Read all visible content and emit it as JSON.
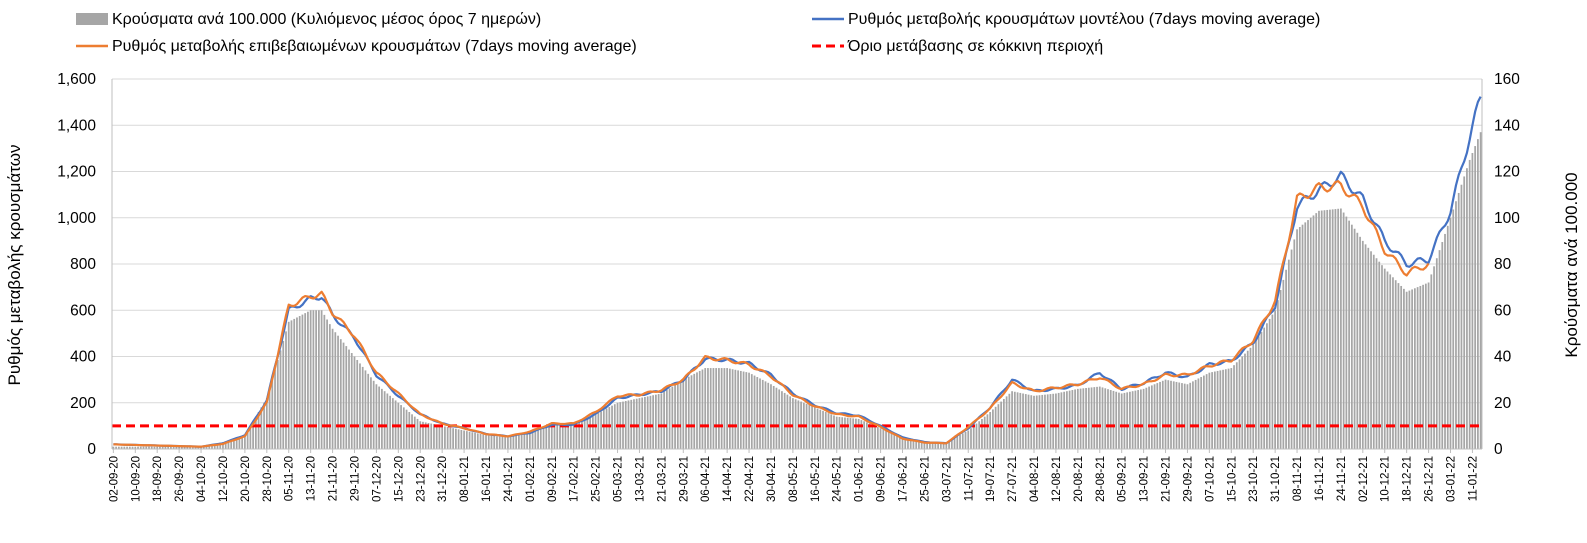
{
  "chart_data": {
    "type": "bar+line",
    "title": "",
    "ylabel_left": "Ρυθμός μεταβολής κρουσμάτων",
    "ylabel_right": "Κρούσματα ανά 100.000",
    "ylim_left": [
      0,
      1600
    ],
    "ylim_right": [
      0,
      160
    ],
    "yticks_left": [
      "0",
      "200",
      "400",
      "600",
      "800",
      "1,000",
      "1,200",
      "1,400",
      "1,600"
    ],
    "yticks_right": [
      "0",
      "20",
      "40",
      "60",
      "80",
      "100",
      "120",
      "140",
      "160"
    ],
    "grid": "horizontal",
    "legend_position": "top",
    "x_start": "2020-09-02",
    "x_end": "2022-01-14",
    "x_tick_labels": [
      "02-09-20",
      "10-09-20",
      "18-09-20",
      "26-09-20",
      "04-10-20",
      "12-10-20",
      "20-10-20",
      "28-10-20",
      "05-11-20",
      "13-11-20",
      "21-11-20",
      "29-11-20",
      "07-12-20",
      "15-12-20",
      "23-12-20",
      "31-12-20",
      "08-01-21",
      "16-01-21",
      "24-01-21",
      "01-02-21",
      "09-02-21",
      "17-02-21",
      "25-02-21",
      "05-03-21",
      "13-03-21",
      "21-03-21",
      "29-03-21",
      "06-04-21",
      "14-04-21",
      "22-04-21",
      "30-04-21",
      "08-05-21",
      "16-05-21",
      "24-05-21",
      "01-06-21",
      "09-06-21",
      "17-06-21",
      "25-06-21",
      "03-07-21",
      "11-07-21",
      "19-07-21",
      "27-07-21",
      "04-08-21",
      "12-08-21",
      "20-08-21",
      "28-08-21",
      "05-09-21",
      "13-09-21",
      "21-09-21",
      "29-09-21",
      "07-10-21",
      "15-10-21",
      "23-10-21",
      "31-10-21",
      "08-11-21",
      "16-11-21",
      "24-11-21",
      "02-12-21",
      "10-12-21",
      "18-12-21",
      "26-12-21",
      "03-01-22",
      "11-01-22"
    ],
    "series": [
      {
        "name": "Κρούσματα ανά 100.000 (Κυλιόμενος μέσος όρος 7 ημερών)",
        "type": "bar",
        "axis": "right",
        "color": "#a6a6a6",
        "points": [
          [
            "2020-09-02",
            1
          ],
          [
            "2020-09-18",
            1
          ],
          [
            "2020-10-04",
            1
          ],
          [
            "2020-10-12",
            3
          ],
          [
            "2020-10-20",
            6
          ],
          [
            "2020-10-28",
            22
          ],
          [
            "2020-11-05",
            55
          ],
          [
            "2020-11-13",
            60
          ],
          [
            "2020-11-17",
            60
          ],
          [
            "2020-11-21",
            52
          ],
          [
            "2020-11-29",
            40
          ],
          [
            "2020-12-07",
            28
          ],
          [
            "2020-12-15",
            20
          ],
          [
            "2020-12-23",
            12
          ],
          [
            "2020-12-31",
            10
          ],
          [
            "2021-01-08",
            8
          ],
          [
            "2021-01-16",
            6
          ],
          [
            "2021-01-24",
            5
          ],
          [
            "2021-02-01",
            7
          ],
          [
            "2021-02-09",
            10
          ],
          [
            "2021-02-17",
            11
          ],
          [
            "2021-02-25",
            15
          ],
          [
            "2021-03-05",
            20
          ],
          [
            "2021-03-13",
            22
          ],
          [
            "2021-03-21",
            24
          ],
          [
            "2021-03-29",
            30
          ],
          [
            "2021-04-06",
            35
          ],
          [
            "2021-04-14",
            35
          ],
          [
            "2021-04-22",
            33
          ],
          [
            "2021-04-30",
            28
          ],
          [
            "2021-05-08",
            22
          ],
          [
            "2021-05-16",
            18
          ],
          [
            "2021-05-24",
            14
          ],
          [
            "2021-06-01",
            13
          ],
          [
            "2021-06-09",
            9
          ],
          [
            "2021-06-17",
            5
          ],
          [
            "2021-06-25",
            3
          ],
          [
            "2021-07-03",
            3
          ],
          [
            "2021-07-11",
            8
          ],
          [
            "2021-07-19",
            16
          ],
          [
            "2021-07-27",
            25
          ],
          [
            "2021-08-04",
            23
          ],
          [
            "2021-08-12",
            24
          ],
          [
            "2021-08-20",
            26
          ],
          [
            "2021-08-28",
            27
          ],
          [
            "2021-09-05",
            24
          ],
          [
            "2021-09-13",
            26
          ],
          [
            "2021-09-21",
            30
          ],
          [
            "2021-09-29",
            28
          ],
          [
            "2021-10-07",
            33
          ],
          [
            "2021-10-15",
            35
          ],
          [
            "2021-10-23",
            45
          ],
          [
            "2021-10-31",
            60
          ],
          [
            "2021-11-08",
            95
          ],
          [
            "2021-11-16",
            103
          ],
          [
            "2021-11-24",
            104
          ],
          [
            "2021-12-02",
            90
          ],
          [
            "2021-12-10",
            78
          ],
          [
            "2021-12-18",
            68
          ],
          [
            "2021-12-26",
            72
          ],
          [
            "2022-01-03",
            100
          ],
          [
            "2022-01-10",
            125
          ],
          [
            "2022-01-14",
            137
          ]
        ]
      },
      {
        "name": "Ρυθμός μεταβολής κρουσμάτων μοντέλου (7days moving average)",
        "type": "line",
        "axis": "left",
        "color": "#4472c4",
        "points": [
          [
            "2020-09-02",
            20
          ],
          [
            "2020-09-18",
            15
          ],
          [
            "2020-10-04",
            10
          ],
          [
            "2020-10-12",
            25
          ],
          [
            "2020-10-20",
            60
          ],
          [
            "2020-10-28",
            210
          ],
          [
            "2020-11-05",
            600
          ],
          [
            "2020-11-13",
            650
          ],
          [
            "2020-11-17",
            660
          ],
          [
            "2020-11-21",
            580
          ],
          [
            "2020-11-29",
            480
          ],
          [
            "2020-12-07",
            320
          ],
          [
            "2020-12-15",
            230
          ],
          [
            "2020-12-23",
            150
          ],
          [
            "2020-12-31",
            110
          ],
          [
            "2021-01-08",
            90
          ],
          [
            "2021-01-16",
            65
          ],
          [
            "2021-01-24",
            55
          ],
          [
            "2021-02-01",
            70
          ],
          [
            "2021-02-09",
            105
          ],
          [
            "2021-02-17",
            105
          ],
          [
            "2021-02-25",
            150
          ],
          [
            "2021-03-05",
            220
          ],
          [
            "2021-03-13",
            235
          ],
          [
            "2021-03-21",
            250
          ],
          [
            "2021-03-29",
            300
          ],
          [
            "2021-04-06",
            390
          ],
          [
            "2021-04-14",
            385
          ],
          [
            "2021-04-22",
            370
          ],
          [
            "2021-04-30",
            320
          ],
          [
            "2021-05-08",
            240
          ],
          [
            "2021-05-16",
            190
          ],
          [
            "2021-05-24",
            155
          ],
          [
            "2021-06-01",
            145
          ],
          [
            "2021-06-09",
            100
          ],
          [
            "2021-06-17",
            50
          ],
          [
            "2021-06-25",
            30
          ],
          [
            "2021-07-03",
            25
          ],
          [
            "2021-07-11",
            90
          ],
          [
            "2021-07-19",
            180
          ],
          [
            "2021-07-27",
            300
          ],
          [
            "2021-08-04",
            250
          ],
          [
            "2021-08-12",
            260
          ],
          [
            "2021-08-20",
            275
          ],
          [
            "2021-08-28",
            330
          ],
          [
            "2021-09-05",
            260
          ],
          [
            "2021-09-13",
            285
          ],
          [
            "2021-09-21",
            330
          ],
          [
            "2021-09-29",
            310
          ],
          [
            "2021-10-07",
            365
          ],
          [
            "2021-10-15",
            380
          ],
          [
            "2021-10-23",
            460
          ],
          [
            "2021-10-31",
            620
          ],
          [
            "2021-11-08",
            1050
          ],
          [
            "2021-11-16",
            1120
          ],
          [
            "2021-11-24",
            1180
          ],
          [
            "2021-12-02",
            1080
          ],
          [
            "2021-12-10",
            900
          ],
          [
            "2021-12-18",
            800
          ],
          [
            "2021-12-26",
            820
          ],
          [
            "2022-01-03",
            1030
          ],
          [
            "2022-01-10",
            1350
          ],
          [
            "2022-01-14",
            1520
          ]
        ]
      },
      {
        "name": "Ρυθμός μεταβολής επιβεβαιωμένων κρουσμάτων (7days moving average)",
        "type": "line",
        "axis": "left",
        "color": "#ed7d31",
        "points": [
          [
            "2020-09-02",
            20
          ],
          [
            "2020-09-18",
            15
          ],
          [
            "2020-10-04",
            10
          ],
          [
            "2020-10-12",
            22
          ],
          [
            "2020-10-20",
            55
          ],
          [
            "2020-10-28",
            200
          ],
          [
            "2020-11-05",
            620
          ],
          [
            "2020-11-13",
            660
          ],
          [
            "2020-11-17",
            670
          ],
          [
            "2020-11-21",
            590
          ],
          [
            "2020-11-29",
            490
          ],
          [
            "2020-12-07",
            330
          ],
          [
            "2020-12-15",
            240
          ],
          [
            "2020-12-23",
            150
          ],
          [
            "2020-12-31",
            110
          ],
          [
            "2021-01-08",
            90
          ],
          [
            "2021-01-16",
            65
          ],
          [
            "2021-01-24",
            55
          ],
          [
            "2021-02-01",
            75
          ],
          [
            "2021-02-09",
            110
          ],
          [
            "2021-02-17",
            110
          ],
          [
            "2021-02-25",
            160
          ],
          [
            "2021-03-05",
            230
          ],
          [
            "2021-03-13",
            235
          ],
          [
            "2021-03-21",
            255
          ],
          [
            "2021-03-29",
            300
          ],
          [
            "2021-04-06",
            395
          ],
          [
            "2021-04-14",
            385
          ],
          [
            "2021-04-22",
            365
          ],
          [
            "2021-04-30",
            315
          ],
          [
            "2021-05-08",
            235
          ],
          [
            "2021-05-16",
            185
          ],
          [
            "2021-05-24",
            150
          ],
          [
            "2021-06-01",
            140
          ],
          [
            "2021-06-09",
            95
          ],
          [
            "2021-06-17",
            45
          ],
          [
            "2021-06-25",
            28
          ],
          [
            "2021-07-03",
            25
          ],
          [
            "2021-07-11",
            95
          ],
          [
            "2021-07-19",
            175
          ],
          [
            "2021-07-27",
            285
          ],
          [
            "2021-08-04",
            250
          ],
          [
            "2021-08-12",
            265
          ],
          [
            "2021-08-20",
            280
          ],
          [
            "2021-08-28",
            310
          ],
          [
            "2021-09-05",
            260
          ],
          [
            "2021-09-13",
            280
          ],
          [
            "2021-09-21",
            320
          ],
          [
            "2021-09-29",
            320
          ],
          [
            "2021-10-07",
            360
          ],
          [
            "2021-10-15",
            385
          ],
          [
            "2021-10-23",
            470
          ],
          [
            "2021-10-31",
            640
          ],
          [
            "2021-11-08",
            1080
          ],
          [
            "2021-11-16",
            1130
          ],
          [
            "2021-11-24",
            1140
          ],
          [
            "2021-12-02",
            1050
          ],
          [
            "2021-12-10",
            860
          ],
          [
            "2021-12-18",
            760
          ],
          [
            "2021-12-26",
            800
          ]
        ]
      },
      {
        "name": "Όριο μετάβασης σε κόκκινη περιοχή",
        "type": "hline",
        "axis": "left",
        "color": "#ff0000",
        "value": 100
      }
    ]
  }
}
